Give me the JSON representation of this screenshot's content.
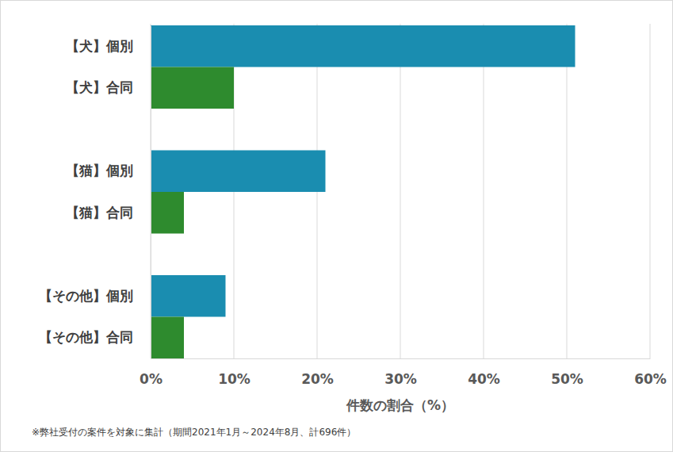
{
  "chart_data": {
    "type": "bar",
    "orientation": "horizontal",
    "categories": [
      "【犬】個別",
      "【犬】合同",
      "【猫】個別",
      "【猫】合同",
      "【その他】個別",
      "【その他】合同"
    ],
    "values": [
      51,
      10,
      21,
      4,
      9,
      4
    ],
    "colors": [
      "#1a8db0",
      "#2e8b2e",
      "#1a8db0",
      "#2e8b2e",
      "#1a8db0",
      "#2e8b2e"
    ],
    "xlabel": "件数の割合（%）",
    "xlim": [
      0,
      60
    ],
    "xticks": [
      {
        "value": 0,
        "label": "0%"
      },
      {
        "value": 10,
        "label": "10%"
      },
      {
        "value": 20,
        "label": "20%"
      },
      {
        "value": 30,
        "label": "30%"
      },
      {
        "value": 40,
        "label": "40%"
      },
      {
        "value": 50,
        "label": "50%"
      },
      {
        "value": 60,
        "label": "60%"
      }
    ],
    "grid": true,
    "footnote": "※弊社受付の案件を対象に集計（期間2021年1月～2024年8月、計696件）"
  }
}
